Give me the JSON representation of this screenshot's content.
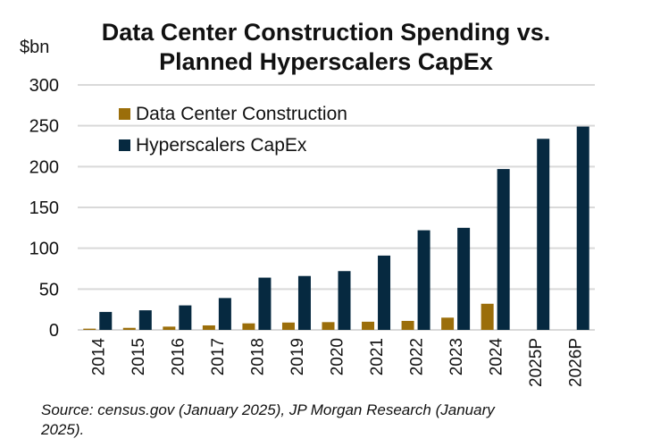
{
  "chart_data": {
    "type": "bar",
    "title": "Data Center Construction Spending vs. Planned Hyperscalers CapEx",
    "ylabel": "$bn",
    "xlabel": "",
    "ylim": [
      0,
      300
    ],
    "yticks": [
      0,
      50,
      100,
      150,
      200,
      250,
      300
    ],
    "grid": true,
    "legend_position": "top-left",
    "categories": [
      "2014",
      "2015",
      "2016",
      "2017",
      "2018",
      "2019",
      "2020",
      "2021",
      "2022",
      "2023",
      "2024",
      "2025P",
      "2026P"
    ],
    "series": [
      {
        "name": "Data Center Construction",
        "color": "#9b6e0a",
        "values": [
          1.5,
          2.5,
          4,
          5.5,
          8,
          9,
          9.5,
          10,
          11,
          15,
          32,
          null,
          null
        ]
      },
      {
        "name": "Hyperscalers CapEx",
        "color": "#062940",
        "values": [
          22,
          24,
          30,
          39,
          64,
          66,
          72,
          91,
          122,
          125,
          197,
          234,
          249
        ]
      }
    ]
  },
  "source": "Source: census.gov (January 2025), JP Morgan Research (January 2025)."
}
